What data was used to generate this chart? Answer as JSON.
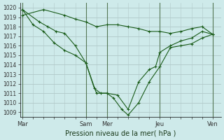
{
  "title": "Pression niveau de la mer( hPa )",
  "bg_color": "#ceeaea",
  "grid_major_color": "#b0c8c8",
  "grid_minor_color": "#b0c8c8",
  "line_color": "#1a5c1a",
  "vline_color": "#557755",
  "ylim": [
    1008.5,
    1020.5
  ],
  "yticks": [
    1009,
    1010,
    1011,
    1012,
    1013,
    1014,
    1015,
    1016,
    1017,
    1018,
    1019,
    1020
  ],
  "xtick_positions": [
    0,
    3,
    4,
    6.5,
    9
  ],
  "xtick_labels": [
    "Mar",
    "Sam",
    "Mer",
    "Jeu",
    "Ven"
  ],
  "vlines": [
    0,
    3,
    4,
    6.5,
    9
  ],
  "xlim": [
    -0.1,
    9.4
  ],
  "series": [
    {
      "x": [
        0.0,
        1.0,
        2.0,
        2.5,
        3.0,
        3.5,
        4.0,
        4.5,
        5.0,
        5.5,
        6.0,
        6.5,
        7.0,
        7.5,
        8.0,
        8.5,
        9.0
      ],
      "y": [
        1019.2,
        1019.8,
        1019.2,
        1018.8,
        1018.5,
        1018.0,
        1018.2,
        1018.2,
        1018.0,
        1017.8,
        1017.5,
        1017.5,
        1017.3,
        1017.5,
        1017.8,
        1018.0,
        1017.2
      ]
    },
    {
      "x": [
        0.0,
        0.8,
        1.2,
        1.6,
        2.0,
        2.5,
        3.0,
        3.5,
        4.0,
        4.5,
        5.0,
        5.5,
        6.0,
        6.3,
        6.5,
        7.0,
        7.5,
        8.0,
        8.5,
        9.0
      ],
      "y": [
        1019.8,
        1018.5,
        1018.0,
        1017.5,
        1017.3,
        1016.0,
        1014.2,
        1011.0,
        1011.0,
        1010.8,
        1009.3,
        1012.2,
        1013.5,
        1013.8,
        1015.3,
        1016.0,
        1016.5,
        1016.8,
        1017.5,
        1017.2
      ]
    },
    {
      "x": [
        0.0,
        0.5,
        1.0,
        1.5,
        2.0,
        2.5,
        3.0,
        3.4,
        3.7,
        4.0,
        4.3,
        4.7,
        5.0,
        5.5,
        6.0,
        6.5,
        7.0,
        7.5,
        8.0,
        8.5,
        9.0
      ],
      "y": [
        1019.8,
        1018.2,
        1017.5,
        1016.3,
        1015.5,
        1015.0,
        1014.2,
        1011.5,
        1011.0,
        1011.0,
        1010.5,
        1009.3,
        1008.7,
        1010.0,
        1012.2,
        1013.8,
        1015.8,
        1016.0,
        1016.2,
        1016.8,
        1017.2
      ]
    }
  ]
}
